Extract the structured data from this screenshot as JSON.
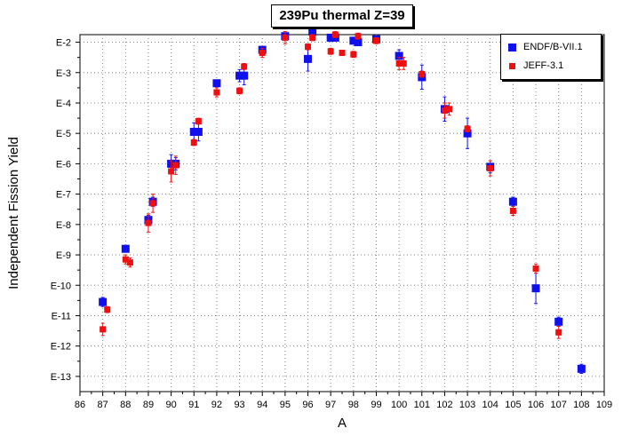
{
  "chart_data": {
    "type": "scatter",
    "title": "239Pu thermal Z=39",
    "xlabel": "A",
    "ylabel": "Independent Fission Yield",
    "xlim": [
      86,
      109
    ],
    "ylim_exp": [
      -13.5,
      -1.75
    ],
    "y_scale": "log",
    "grid": true,
    "legend_position": "top-right",
    "x_ticks": [
      "86",
      "87",
      "88",
      "89",
      "90",
      "91",
      "92",
      "93",
      "94",
      "95",
      "96",
      "97",
      "98",
      "99",
      "100",
      "101",
      "102",
      "103",
      "104",
      "105",
      "106",
      "107",
      "108",
      "109"
    ],
    "y_ticks": [
      {
        "label": "E-2",
        "exp": -2
      },
      {
        "label": "E-3",
        "exp": -3
      },
      {
        "label": "E-4",
        "exp": -4
      },
      {
        "label": "E-5",
        "exp": -5
      },
      {
        "label": "E-6",
        "exp": -6
      },
      {
        "label": "E-7",
        "exp": -7
      },
      {
        "label": "E-8",
        "exp": -8
      },
      {
        "label": "E-9",
        "exp": -9
      },
      {
        "label": "E-10",
        "exp": -10
      },
      {
        "label": "E-11",
        "exp": -11
      },
      {
        "label": "E-12",
        "exp": -12
      },
      {
        "label": "E-13",
        "exp": -13
      }
    ],
    "series": [
      {
        "name": "ENDF/B-VII.1",
        "color": "#1010ee",
        "marker": "square",
        "points": [
          {
            "x": 87.0,
            "exp": -10.55,
            "err": 0.15
          },
          {
            "x": 88.0,
            "exp": -8.8,
            "err": 0.1
          },
          {
            "x": 89.0,
            "exp": -7.85,
            "err": 0.15
          },
          {
            "x": 89.2,
            "exp": -7.25,
            "err": 0.15
          },
          {
            "x": 90.0,
            "exp": -6.0,
            "err": 0.3
          },
          {
            "x": 90.2,
            "exp": -6.0,
            "err": 0.2
          },
          {
            "x": 91.0,
            "exp": -4.95,
            "err": 0.3
          },
          {
            "x": 91.2,
            "exp": -4.95,
            "err": 0.3
          },
          {
            "x": 92.0,
            "exp": -3.35,
            "err": 0.1
          },
          {
            "x": 93.0,
            "exp": -3.1,
            "err": 0.2
          },
          {
            "x": 93.2,
            "exp": -3.1,
            "err": 0.3
          },
          {
            "x": 94.0,
            "exp": -2.25,
            "err": 0.1
          },
          {
            "x": 95.0,
            "exp": -1.8,
            "err": 0.1
          },
          {
            "x": 96.0,
            "exp": -2.55,
            "err": 0.4
          },
          {
            "x": 96.2,
            "exp": -1.65,
            "err": 0.05
          },
          {
            "x": 97.0,
            "exp": -1.85,
            "err": 0.1
          },
          {
            "x": 97.2,
            "exp": -1.85,
            "err": 0.1
          },
          {
            "x": 98.0,
            "exp": -1.95,
            "err": 0.1
          },
          {
            "x": 98.2,
            "exp": -2.0,
            "err": 0.1
          },
          {
            "x": 99.0,
            "exp": -1.9,
            "err": 0.1
          },
          {
            "x": 100.0,
            "exp": -2.45,
            "err": 0.2
          },
          {
            "x": 101.0,
            "exp": -3.15,
            "err": 0.4
          },
          {
            "x": 102.0,
            "exp": -4.2,
            "err": 0.4
          },
          {
            "x": 103.0,
            "exp": -5.0,
            "err": 0.5
          },
          {
            "x": 104.0,
            "exp": -6.1,
            "err": 0.2
          },
          {
            "x": 105.0,
            "exp": -7.25,
            "err": 0.15
          },
          {
            "x": 106.0,
            "exp": -10.1,
            "err": 0.5
          },
          {
            "x": 107.0,
            "exp": -11.2,
            "err": 0.15
          },
          {
            "x": 108.0,
            "exp": -12.75,
            "err": 0.15
          }
        ]
      },
      {
        "name": "JEFF-3.1",
        "color": "#ee1010",
        "marker": "square",
        "points": [
          {
            "x": 87.0,
            "exp": -11.45,
            "err": 0.2
          },
          {
            "x": 87.2,
            "exp": -10.8,
            "err": 0.1
          },
          {
            "x": 88.0,
            "exp": -9.15,
            "err": 0.15
          },
          {
            "x": 88.2,
            "exp": -9.25,
            "err": 0.15
          },
          {
            "x": 89.0,
            "exp": -7.95,
            "err": 0.3
          },
          {
            "x": 89.2,
            "exp": -7.3,
            "err": 0.3
          },
          {
            "x": 90.0,
            "exp": -6.25,
            "err": 0.35
          },
          {
            "x": 90.2,
            "exp": -6.05,
            "err": 0.3
          },
          {
            "x": 91.0,
            "exp": -5.3,
            "err": 0.1
          },
          {
            "x": 91.2,
            "exp": -4.6,
            "err": 0.1
          },
          {
            "x": 92.0,
            "exp": -3.65,
            "err": 0.15
          },
          {
            "x": 93.0,
            "exp": -3.6,
            "err": 0.1
          },
          {
            "x": 93.2,
            "exp": -2.8,
            "err": 0.1
          },
          {
            "x": 94.0,
            "exp": -2.35,
            "err": 0.15
          },
          {
            "x": 95.0,
            "exp": -1.85,
            "err": 0.2
          },
          {
            "x": 96.0,
            "exp": -2.15,
            "err": 0.1
          },
          {
            "x": 96.2,
            "exp": -1.85,
            "err": 0.1
          },
          {
            "x": 97.0,
            "exp": -2.3,
            "err": 0.1
          },
          {
            "x": 97.2,
            "exp": -1.75,
            "err": 0.1
          },
          {
            "x": 97.5,
            "exp": -2.35,
            "err": 0.05
          },
          {
            "x": 98.0,
            "exp": -2.4,
            "err": 0.1
          },
          {
            "x": 98.2,
            "exp": -1.8,
            "err": 0.1
          },
          {
            "x": 99.0,
            "exp": -1.95,
            "err": 0.1
          },
          {
            "x": 100.0,
            "exp": -2.7,
            "err": 0.2
          },
          {
            "x": 100.2,
            "exp": -2.7,
            "err": 0.2
          },
          {
            "x": 101.0,
            "exp": -3.05,
            "err": 0.1
          },
          {
            "x": 102.0,
            "exp": -4.25,
            "err": 0.25
          },
          {
            "x": 102.2,
            "exp": -4.2,
            "err": 0.2
          },
          {
            "x": 103.0,
            "exp": -4.85,
            "err": 0.1
          },
          {
            "x": 104.0,
            "exp": -6.15,
            "err": 0.25
          },
          {
            "x": 105.0,
            "exp": -7.55,
            "err": 0.15
          },
          {
            "x": 106.0,
            "exp": -9.45,
            "err": 0.15
          },
          {
            "x": 107.0,
            "exp": -11.55,
            "err": 0.2
          }
        ]
      }
    ]
  }
}
